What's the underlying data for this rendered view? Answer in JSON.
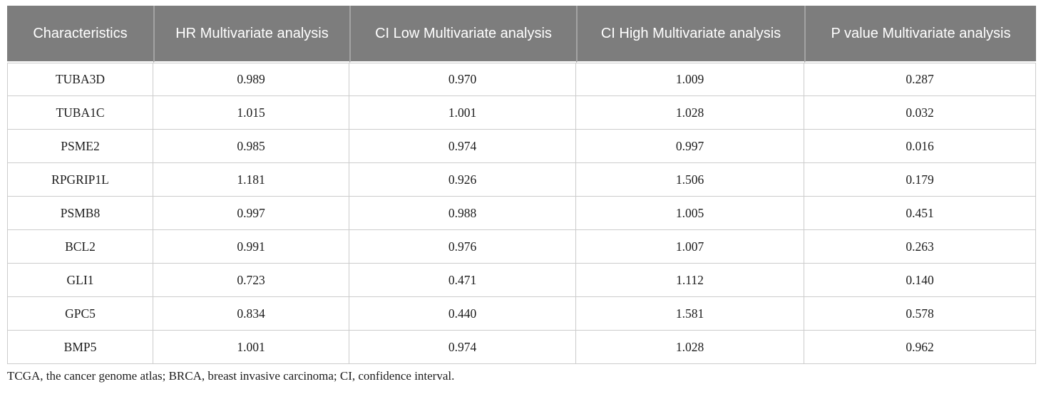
{
  "colors": {
    "header_background": "#7d7d7d",
    "header_text": "#ffffff",
    "header_divider": "#a3a3a3",
    "body_border": "#cccccc",
    "body_text": "#1c1c1c",
    "page_background": "#ffffff"
  },
  "table": {
    "columns": [
      "Characteristics",
      "HR Multivariate analysis",
      "CI Low Multivariate analysis",
      "CI High Multivariate analysis",
      "P value Multivariate analysis"
    ],
    "rows": [
      {
        "cells": [
          "TUBA3D",
          "0.989",
          "0.970",
          "1.009",
          "0.287"
        ]
      },
      {
        "cells": [
          "TUBA1C",
          "1.015",
          "1.001",
          "1.028",
          "0.032"
        ]
      },
      {
        "cells": [
          "PSME2",
          "0.985",
          "0.974",
          "0.997",
          "0.016"
        ]
      },
      {
        "cells": [
          "RPGRIP1L",
          "1.181",
          "0.926",
          "1.506",
          "0.179"
        ]
      },
      {
        "cells": [
          "PSMB8",
          "0.997",
          "0.988",
          "1.005",
          "0.451"
        ]
      },
      {
        "cells": [
          "BCL2",
          "0.991",
          "0.976",
          "1.007",
          "0.263"
        ]
      },
      {
        "cells": [
          "GLI1",
          "0.723",
          "0.471",
          "1.112",
          "0.140"
        ]
      },
      {
        "cells": [
          "GPC5",
          "0.834",
          "0.440",
          "1.581",
          "0.578"
        ]
      },
      {
        "cells": [
          "BMP5",
          "1.001",
          "0.974",
          "1.028",
          "0.962"
        ]
      }
    ]
  },
  "footnote": "TCGA, the cancer genome atlas; BRCA, breast invasive carcinoma; CI, confidence interval."
}
